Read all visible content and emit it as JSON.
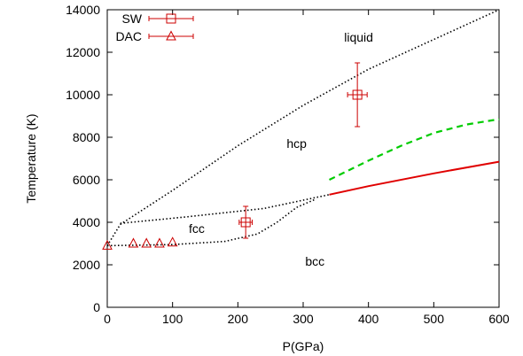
{
  "chart_data": {
    "type": "scatter",
    "xlabel": "P(GPa)",
    "ylabel": "Temperature (K)",
    "xlim": [
      0,
      600
    ],
    "ylim": [
      0,
      14000
    ],
    "xticks": [
      0,
      100,
      200,
      300,
      400,
      500,
      600
    ],
    "yticks": [
      0,
      2000,
      4000,
      6000,
      8000,
      10000,
      12000,
      14000
    ],
    "legend_position": "top-left",
    "regions": [
      {
        "text": "liquid",
        "x": 385,
        "y": 12500
      },
      {
        "text": "hcp",
        "x": 290,
        "y": 7500
      },
      {
        "text": "fcc",
        "x": 137,
        "y": 3500
      },
      {
        "text": "bcc",
        "x": 318,
        "y": 1950
      }
    ],
    "boundaries": [
      {
        "name": "",
        "style": "dotted",
        "color": "#000000",
        "points": [
          [
            0,
            2900
          ],
          [
            20,
            3900
          ],
          [
            100,
            5500
          ],
          [
            200,
            7600
          ],
          [
            300,
            9500
          ],
          [
            400,
            11200
          ],
          [
            500,
            12600
          ],
          [
            600,
            14000
          ]
        ]
      },
      {
        "name": "",
        "style": "dotted",
        "color": "#000000",
        "points": [
          [
            20,
            3950
          ],
          [
            120,
            4250
          ],
          [
            240,
            4650
          ],
          [
            340,
            5300
          ]
        ]
      },
      {
        "name": "",
        "style": "dotted",
        "color": "#000000",
        "points": [
          [
            0,
            2900
          ],
          [
            100,
            2950
          ],
          [
            180,
            3100
          ],
          [
            230,
            3450
          ],
          [
            260,
            4000
          ],
          [
            290,
            4700
          ],
          [
            320,
            5100
          ]
        ]
      },
      {
        "name": "",
        "style": "solid",
        "color": "#e00000",
        "points": [
          [
            340,
            5300
          ],
          [
            400,
            5700
          ],
          [
            500,
            6300
          ],
          [
            600,
            6850
          ]
        ]
      },
      {
        "name": "",
        "style": "dashed",
        "color": "#00cc00",
        "points": [
          [
            340,
            6000
          ],
          [
            400,
            6900
          ],
          [
            450,
            7600
          ],
          [
            500,
            8200
          ],
          [
            550,
            8600
          ],
          [
            600,
            8850
          ]
        ]
      }
    ],
    "series": [
      {
        "name": "SW",
        "marker": "square",
        "color": "#cc0000",
        "points": [
          {
            "x": 212,
            "y": 4000,
            "xerr": 10,
            "yerr": 750
          },
          {
            "x": 383,
            "y": 10000,
            "xerr": 15,
            "yerr": 1500
          }
        ]
      },
      {
        "name": "DAC",
        "marker": "triangle",
        "color": "#cc0000",
        "points": [
          {
            "x": 0,
            "y": 2900
          },
          {
            "x": 40,
            "y": 3000
          },
          {
            "x": 60,
            "y": 3000
          },
          {
            "x": 80,
            "y": 3000
          },
          {
            "x": 100,
            "y": 3050
          }
        ]
      }
    ]
  }
}
